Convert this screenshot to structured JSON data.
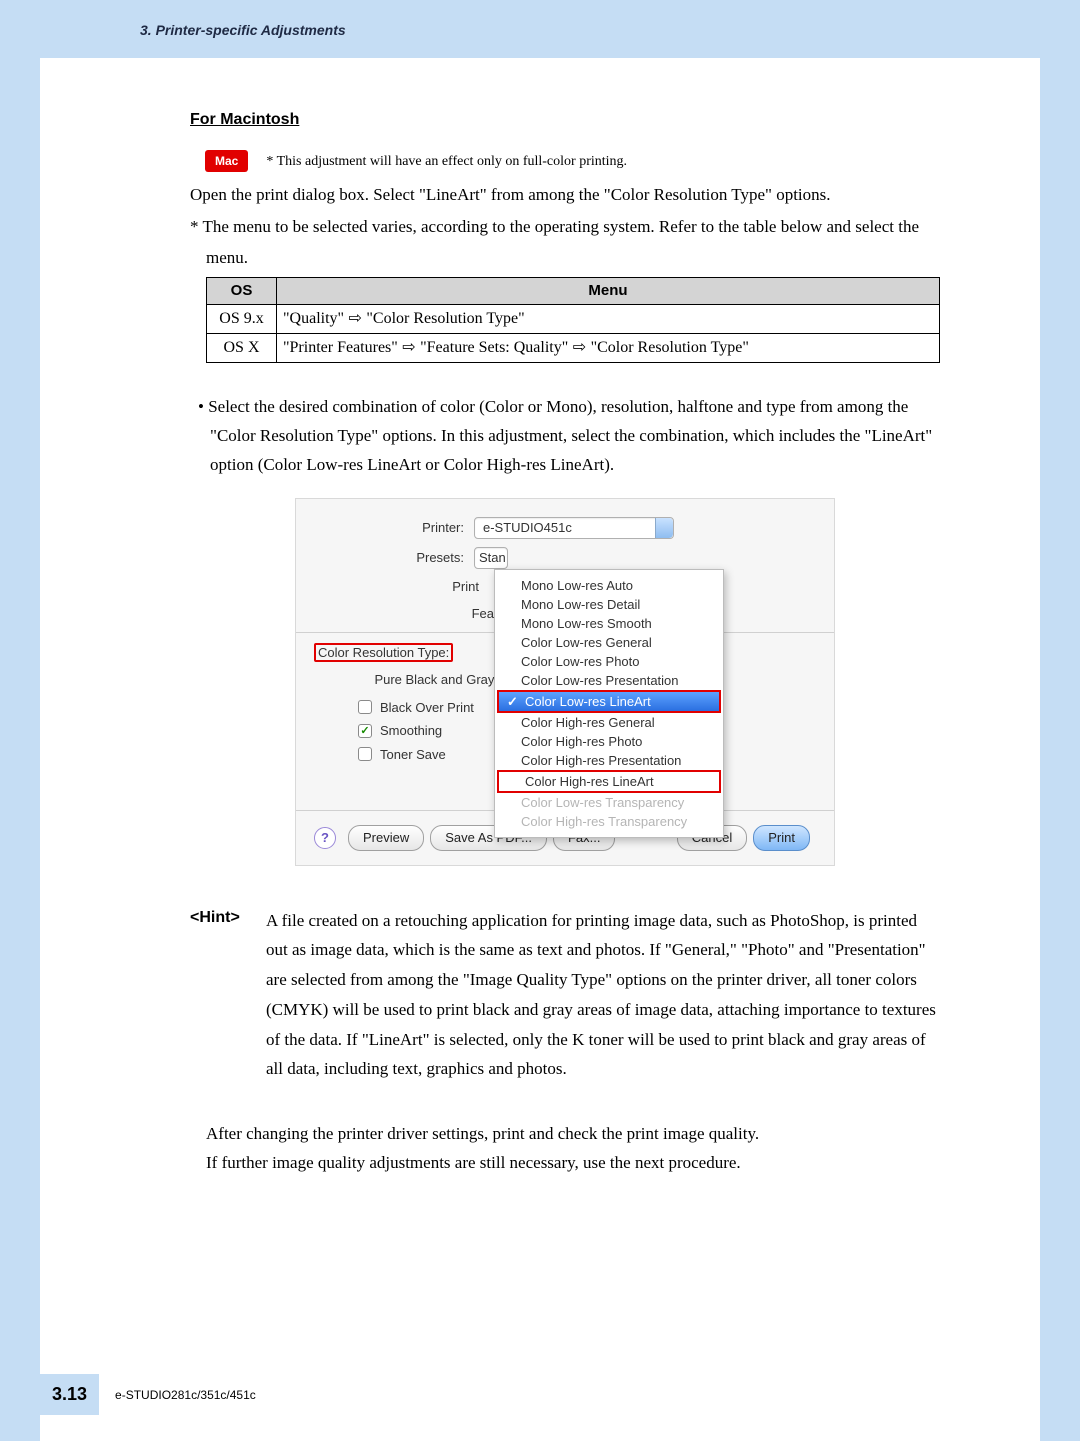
{
  "header": {
    "chapter": "3. Printer-specific Adjustments"
  },
  "section": {
    "title": "For Macintosh",
    "mac_badge": "Mac",
    "mac_note": "* This adjustment will have an effect only on full-color printing.",
    "line1": "Open the print dialog box.  Select \"LineArt\" from among the \"Color Resolution Type\" options.",
    "line2": "* The menu to be selected varies, according to the operating system. Refer to the table below and select the",
    "line2b": "menu."
  },
  "os_table": {
    "header_os": "OS",
    "header_menu": "Menu",
    "rows": [
      {
        "os": "OS 9.x",
        "menu_parts": [
          "\"Quality\"",
          " ⇨ ",
          "\"Color Resolution Type\""
        ]
      },
      {
        "os": "OS X",
        "menu_parts": [
          "\"Printer Features\"",
          " ⇨ ",
          "\"Feature Sets: Quality\"",
          " ⇨ ",
          "\"Color Resolution Type\""
        ]
      }
    ],
    "border_color": "#000000",
    "header_bg": "#d4d4d4"
  },
  "bullet": {
    "text": "• Select the desired combination of color (Color or Mono), resolution, halftone and type from among the \"Color Resolution Type\" options.  In this adjustment, select the combination, which includes the \"LineArt\" option (Color Low-res LineArt or Color High-res LineArt)."
  },
  "dialog": {
    "printer_label": "Printer:",
    "printer_value": "e-STUDIO451c",
    "presets_label": "Presets:",
    "presets_value": "Stan",
    "print_partial": "Print",
    "fea_partial": "Fea",
    "crt_label": "Color Resolution Type:",
    "pbg_label": "Pure Black and Gray:",
    "chk_black_over_print": "Black Over Print",
    "chk_smoothing": "Smoothing",
    "chk_toner_save": "Toner Save",
    "menu_items": [
      "Mono Low-res Auto",
      "Mono Low-res Detail",
      "Mono Low-res Smooth",
      "Color Low-res General",
      "Color Low-res Photo",
      "Color Low-res Presentation",
      "Color Low-res LineArt",
      "Color High-res General",
      "Color High-res Photo",
      "Color High-res Presentation",
      "Color High-res LineArt",
      "Color Low-res Transparency",
      "Color High-res Transparency"
    ],
    "selected_index": 6,
    "red_frame_index": 10,
    "disabled_from_index": 11,
    "buttons": {
      "help": "?",
      "preview": "Preview",
      "save_pdf": "Save As PDF...",
      "fax": "Fax...",
      "cancel": "Cancel",
      "print": "Print"
    },
    "colors": {
      "highlight_red": "#e10000",
      "selection_blue": "#3d85ea",
      "dialog_bg": "#f6f6f6"
    }
  },
  "hint": {
    "label": "<Hint>",
    "text": "A file created on a retouching application for printing image data, such as PhotoShop, is printed out as image data, which is the same as text and photos.  If \"General,\" \"Photo\" and \"Presentation\" are selected from among the \"Image Quality Type\" options on the printer driver, all toner colors (CMYK) will be used to print black and gray areas of image data, attaching importance to textures of the data.  If \"LineArt\" is selected, only the K toner will be used to print black and gray areas of all data, including text, graphics and photos."
  },
  "after": {
    "l1": "After changing the printer driver settings, print and check the print image quality.",
    "l2": "If further image quality adjustments are still necessary, use the next procedure."
  },
  "footer": {
    "page": "3.13",
    "model": "e-STUDIO281c/351c/451c"
  }
}
